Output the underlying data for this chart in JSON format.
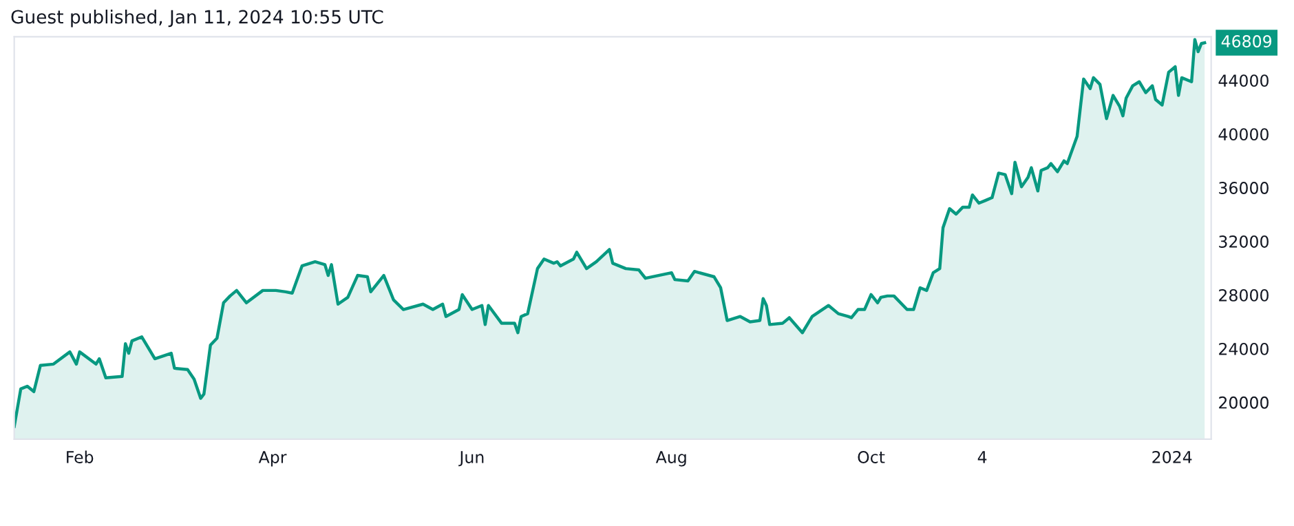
{
  "chart_data": {
    "type": "area",
    "title": "Guest published, Jan 11, 2024 10:55 UTC",
    "x": [
      "2023-01-12",
      "2023-01-14",
      "2023-01-16",
      "2023-01-18",
      "2023-01-20",
      "2023-01-24",
      "2023-01-29",
      "2023-01-31",
      "2023-02-01",
      "2023-02-06",
      "2023-02-07",
      "2023-02-09",
      "2023-02-14",
      "2023-02-15",
      "2023-02-16",
      "2023-02-17",
      "2023-02-20",
      "2023-02-24",
      "2023-03-01",
      "2023-03-02",
      "2023-03-06",
      "2023-03-08",
      "2023-03-10",
      "2023-03-11",
      "2023-03-13",
      "2023-03-15",
      "2023-03-17",
      "2023-03-19",
      "2023-03-21",
      "2023-03-24",
      "2023-03-29",
      "2023-04-02",
      "2023-04-05",
      "2023-04-07",
      "2023-04-10",
      "2023-04-14",
      "2023-04-17",
      "2023-04-18",
      "2023-04-19",
      "2023-04-21",
      "2023-04-24",
      "2023-04-27",
      "2023-04-30",
      "2023-05-01",
      "2023-05-05",
      "2023-05-08",
      "2023-05-11",
      "2023-05-17",
      "2023-05-20",
      "2023-05-23",
      "2023-05-24",
      "2023-05-28",
      "2023-05-29",
      "2023-06-01",
      "2023-06-04",
      "2023-06-05",
      "2023-06-06",
      "2023-06-10",
      "2023-06-14",
      "2023-06-15",
      "2023-06-16",
      "2023-06-18",
      "2023-06-21",
      "2023-06-23",
      "2023-06-26",
      "2023-06-27",
      "2023-06-28",
      "2023-07-02",
      "2023-07-03",
      "2023-07-06",
      "2023-07-09",
      "2023-07-13",
      "2023-07-14",
      "2023-07-18",
      "2023-07-22",
      "2023-07-24",
      "2023-08-01",
      "2023-08-02",
      "2023-08-06",
      "2023-08-08",
      "2023-08-14",
      "2023-08-16",
      "2023-08-18",
      "2023-08-22",
      "2023-08-25",
      "2023-08-28",
      "2023-08-29",
      "2023-08-30",
      "2023-08-31",
      "2023-09-04",
      "2023-09-06",
      "2023-09-10",
      "2023-09-13",
      "2023-09-18",
      "2023-09-21",
      "2023-09-24",
      "2023-09-25",
      "2023-09-27",
      "2023-09-29",
      "2023-10-01",
      "2023-10-03",
      "2023-10-04",
      "2023-10-06",
      "2023-10-08",
      "2023-10-12",
      "2023-10-14",
      "2023-10-16",
      "2023-10-18",
      "2023-10-20",
      "2023-10-22",
      "2023-10-23",
      "2023-10-25",
      "2023-10-27",
      "2023-10-29",
      "2023-10-31",
      "2023-11-01",
      "2023-11-03",
      "2023-11-05",
      "2023-11-07",
      "2023-11-09",
      "2023-11-11",
      "2023-11-13",
      "2023-11-14",
      "2023-11-16",
      "2023-11-18",
      "2023-11-19",
      "2023-11-21",
      "2023-11-22",
      "2023-11-24",
      "2023-11-25",
      "2023-11-27",
      "2023-11-29",
      "2023-11-30",
      "2023-12-03",
      "2023-12-05",
      "2023-12-07",
      "2023-12-08",
      "2023-12-10",
      "2023-12-12",
      "2023-12-14",
      "2023-12-16",
      "2023-12-17",
      "2023-12-18",
      "2023-12-20",
      "2023-12-22",
      "2023-12-24",
      "2023-12-26",
      "2023-12-27",
      "2023-12-29",
      "2023-12-31",
      "2024-01-02",
      "2024-01-03",
      "2024-01-04",
      "2024-01-07",
      "2024-01-08",
      "2024-01-09",
      "2024-01-10",
      "2024-01-11"
    ],
    "series": [
      {
        "color": "#089981",
        "values": [
          18200,
          21000,
          21200,
          20800,
          22750,
          22850,
          23760,
          22850,
          23760,
          22850,
          23250,
          21830,
          21930,
          24370,
          23660,
          24580,
          24880,
          23250,
          23660,
          22540,
          22440,
          21730,
          20300,
          20610,
          24270,
          24780,
          27420,
          27930,
          28340,
          27420,
          28340,
          28340,
          28240,
          28140,
          30170,
          30480,
          30270,
          29460,
          30270,
          27320,
          27830,
          29460,
          29360,
          28240,
          29460,
          27630,
          26920,
          27320,
          26920,
          27320,
          26400,
          26920,
          28030,
          26920,
          27220,
          25800,
          27220,
          25900,
          25900,
          25190,
          26400,
          26610,
          29970,
          30680,
          30370,
          30480,
          30170,
          30680,
          31190,
          29970,
          30480,
          31390,
          30370,
          29970,
          29870,
          29250,
          29660,
          29150,
          29050,
          29760,
          29360,
          28540,
          26100,
          26400,
          26000,
          26100,
          27730,
          27220,
          25800,
          25900,
          26310,
          25190,
          26400,
          27220,
          26610,
          26400,
          26310,
          26920,
          26920,
          28030,
          27420,
          27830,
          27930,
          27930,
          26920,
          26920,
          28540,
          28340,
          29660,
          29970,
          33020,
          34440,
          34030,
          34540,
          34540,
          35460,
          34850,
          35050,
          35260,
          37090,
          36980,
          35560,
          37900,
          36070,
          36780,
          37490,
          35760,
          37290,
          37490,
          37800,
          37190,
          38000,
          37800,
          39830,
          44100,
          43390,
          44200,
          43700,
          41150,
          42880,
          42070,
          41360,
          42680,
          43600,
          43900,
          43090,
          43600,
          42580,
          42170,
          44610,
          45020,
          42880,
          44200,
          43900,
          47050,
          46140,
          46750,
          46809
        ]
      }
    ],
    "xlim": [
      "2023-01-12",
      "2024-01-13"
    ],
    "xticks": [
      {
        "value": "2023-02-01",
        "label": "Feb"
      },
      {
        "value": "2023-04-01",
        "label": "Apr"
      },
      {
        "value": "2023-06-01",
        "label": "Jun"
      },
      {
        "value": "2023-08-01",
        "label": "Aug"
      },
      {
        "value": "2023-10-01",
        "label": "Oct"
      },
      {
        "value": "2023-11-04",
        "label": "4"
      },
      {
        "value": "2024-01-01",
        "label": "2024"
      }
    ],
    "ylim": [
      17250,
      47250
    ],
    "yticks": [
      20000,
      24000,
      28000,
      32000,
      36000,
      40000,
      44000
    ],
    "annotations": [
      {
        "text": "46809",
        "x": "2024-01-11",
        "y": 46809
      }
    ],
    "grid": false,
    "legend": false
  }
}
